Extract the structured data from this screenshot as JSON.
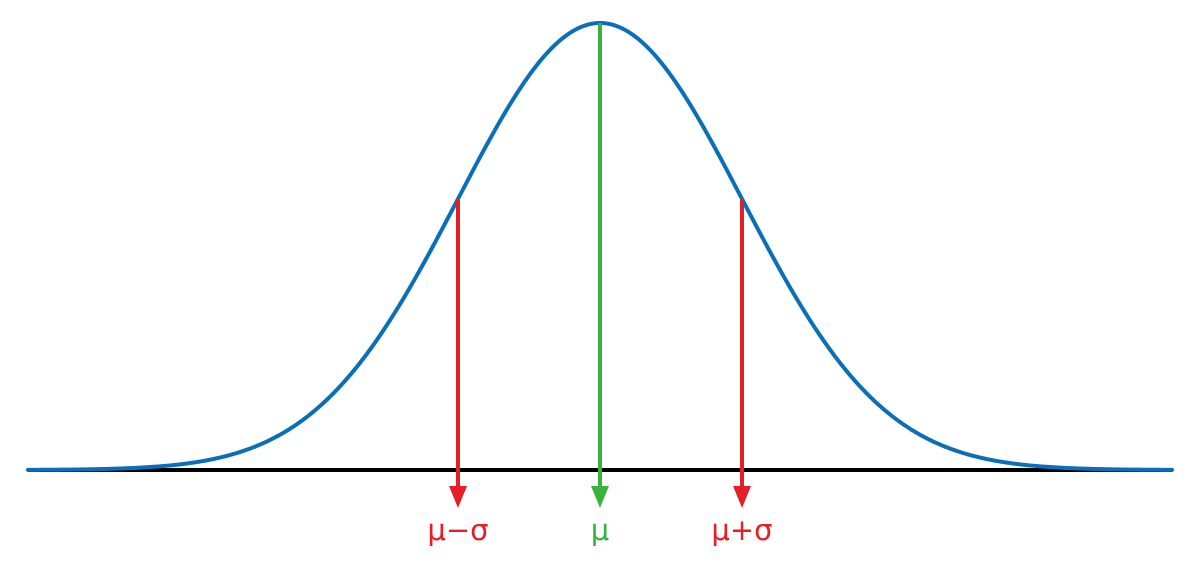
{
  "diagram": {
    "curve": {
      "name": "normal-distribution",
      "color": "#0a6fba"
    },
    "baseline": {
      "color": "#000000"
    },
    "markers": [
      {
        "id": "mu-minus-sigma",
        "label": "μ−σ",
        "sigma_offset": -1,
        "color": "#e61e25"
      },
      {
        "id": "mu",
        "label": "μ",
        "sigma_offset": 0,
        "color": "#3bb23e"
      },
      {
        "id": "mu-plus-sigma",
        "label": "μ+σ",
        "sigma_offset": 1,
        "color": "#e61e25"
      }
    ]
  }
}
